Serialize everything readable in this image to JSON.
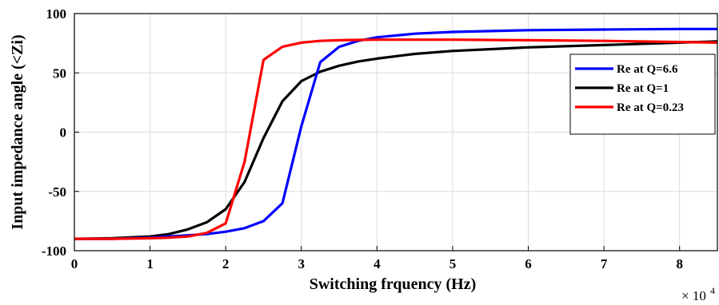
{
  "chart_data": {
    "type": "line",
    "title": "",
    "xlabel": "Switching frquency (Hz)",
    "ylabel": "Input impedance angle (<Zi)",
    "x_multiplier_base": "× 10",
    "x_multiplier_exp": "4",
    "xlim": [
      0,
      8.5
    ],
    "ylim": [
      -100,
      100
    ],
    "xticks": [
      0,
      1,
      2,
      3,
      4,
      5,
      6,
      7,
      8
    ],
    "yticks": [
      -100,
      -50,
      0,
      50,
      100
    ],
    "grid": true,
    "legend_position": "right",
    "series": [
      {
        "name": "Re at Q=6.6",
        "color": "#0000ff",
        "x": [
          0,
          0.5,
          1,
          1.25,
          1.5,
          1.75,
          2,
          2.25,
          2.5,
          2.75,
          3,
          3.25,
          3.5,
          3.75,
          4,
          4.5,
          5,
          6,
          7,
          8,
          8.5
        ],
        "y": [
          -90,
          -90,
          -89,
          -88,
          -87,
          -86,
          -84,
          -81,
          -75,
          -60,
          5,
          59,
          72,
          77,
          80,
          83,
          84.5,
          86,
          86.5,
          87,
          87
        ]
      },
      {
        "name": "Re at Q=1",
        "color": "#000000",
        "x": [
          0,
          0.5,
          1,
          1.25,
          1.5,
          1.75,
          2,
          2.25,
          2.5,
          2.75,
          3,
          3.25,
          3.5,
          3.75,
          4,
          4.5,
          5,
          6,
          7,
          8,
          8.5
        ],
        "y": [
          -90,
          -89.5,
          -88,
          -86,
          -82,
          -76,
          -65,
          -42,
          -5,
          26,
          43,
          51,
          56,
          59.5,
          62,
          66,
          68.5,
          71.5,
          73.5,
          75.5,
          76.5
        ]
      },
      {
        "name": "Re at Q=0.23",
        "color": "#ff0000",
        "x": [
          0,
          0.5,
          1,
          1.25,
          1.5,
          1.75,
          2,
          2.25,
          2.5,
          2.75,
          3,
          3.25,
          3.5,
          3.75,
          4,
          4.5,
          5,
          6,
          7,
          8,
          8.5
        ],
        "y": [
          -90,
          -90,
          -89.5,
          -89,
          -88,
          -85,
          -77,
          -25,
          61,
          72,
          75.5,
          77,
          77.5,
          77.8,
          78,
          78,
          78,
          77.5,
          77,
          76,
          75.5
        ]
      }
    ]
  }
}
